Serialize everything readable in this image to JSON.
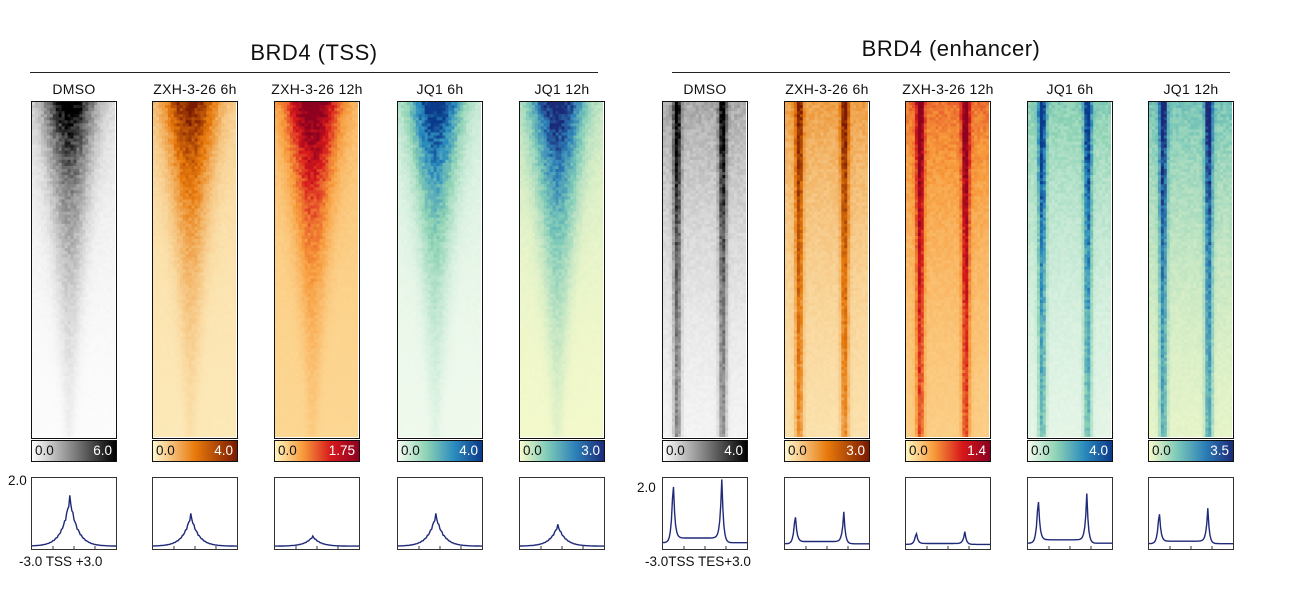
{
  "groups": [
    {
      "title": "BRD4 (TSS)",
      "profile_mode": "single",
      "ymax_label": "2.0",
      "xaxis_label": "-3.0 TSS +3.0",
      "columns": [
        {
          "label": "DMSO",
          "cmin": "0.0",
          "cmax": "6.0",
          "palette": "gray",
          "peak": 0.7
        },
        {
          "label": "ZXH-3-26 6h",
          "cmin": "0.0",
          "cmax": "4.0",
          "palette": "orange",
          "peak": 0.45
        },
        {
          "label": "ZXH-3-26 12h",
          "cmin": "0.0",
          "cmax": "1.75",
          "palette": "red",
          "peak": 0.14
        },
        {
          "label": "JQ1 6h",
          "cmin": "0.0",
          "cmax": "4.0",
          "palette": "blue",
          "peak": 0.45
        },
        {
          "label": "JQ1 12h",
          "cmin": "0.0",
          "cmax": "3.0",
          "palette": "darkblue",
          "peak": 0.3
        }
      ]
    },
    {
      "title": "BRD4 (enhancer)",
      "profile_mode": "double",
      "ymax_label": "2.0",
      "xaxis_label": "-3.0TSS TES+3.0",
      "columns": [
        {
          "label": "DMSO",
          "cmin": "0.0",
          "cmax": "4.0",
          "palette": "gray",
          "peak": 0.95
        },
        {
          "label": "ZXH-3-26 6h",
          "cmin": "0.0",
          "cmax": "3.0",
          "palette": "orange",
          "peak": 0.45
        },
        {
          "label": "ZXH-3-26 12h",
          "cmin": "0.0",
          "cmax": "1.4",
          "palette": "red",
          "peak": 0.18
        },
        {
          "label": "JQ1 6h",
          "cmin": "0.0",
          "cmax": "4.0",
          "palette": "blue",
          "peak": 0.7
        },
        {
          "label": "JQ1 12h",
          "cmin": "0.0",
          "cmax": "3.5",
          "palette": "darkblue",
          "peak": 0.5
        }
      ]
    }
  ],
  "palettes": {
    "gray": [
      "#ffffff",
      "#000000"
    ],
    "orange": [
      "#fff8d0",
      "#e87a0c",
      "#7a1a00"
    ],
    "red": [
      "#fff6c0",
      "#f79a3a",
      "#d7191c",
      "#8c0020"
    ],
    "blue": [
      "#f3fbef",
      "#8fd3b5",
      "#2b8cbe",
      "#0b3a8a"
    ],
    "darkblue": [
      "#f8fbcc",
      "#7cc9b8",
      "#2c7fb8",
      "#1b2a78"
    ]
  }
}
